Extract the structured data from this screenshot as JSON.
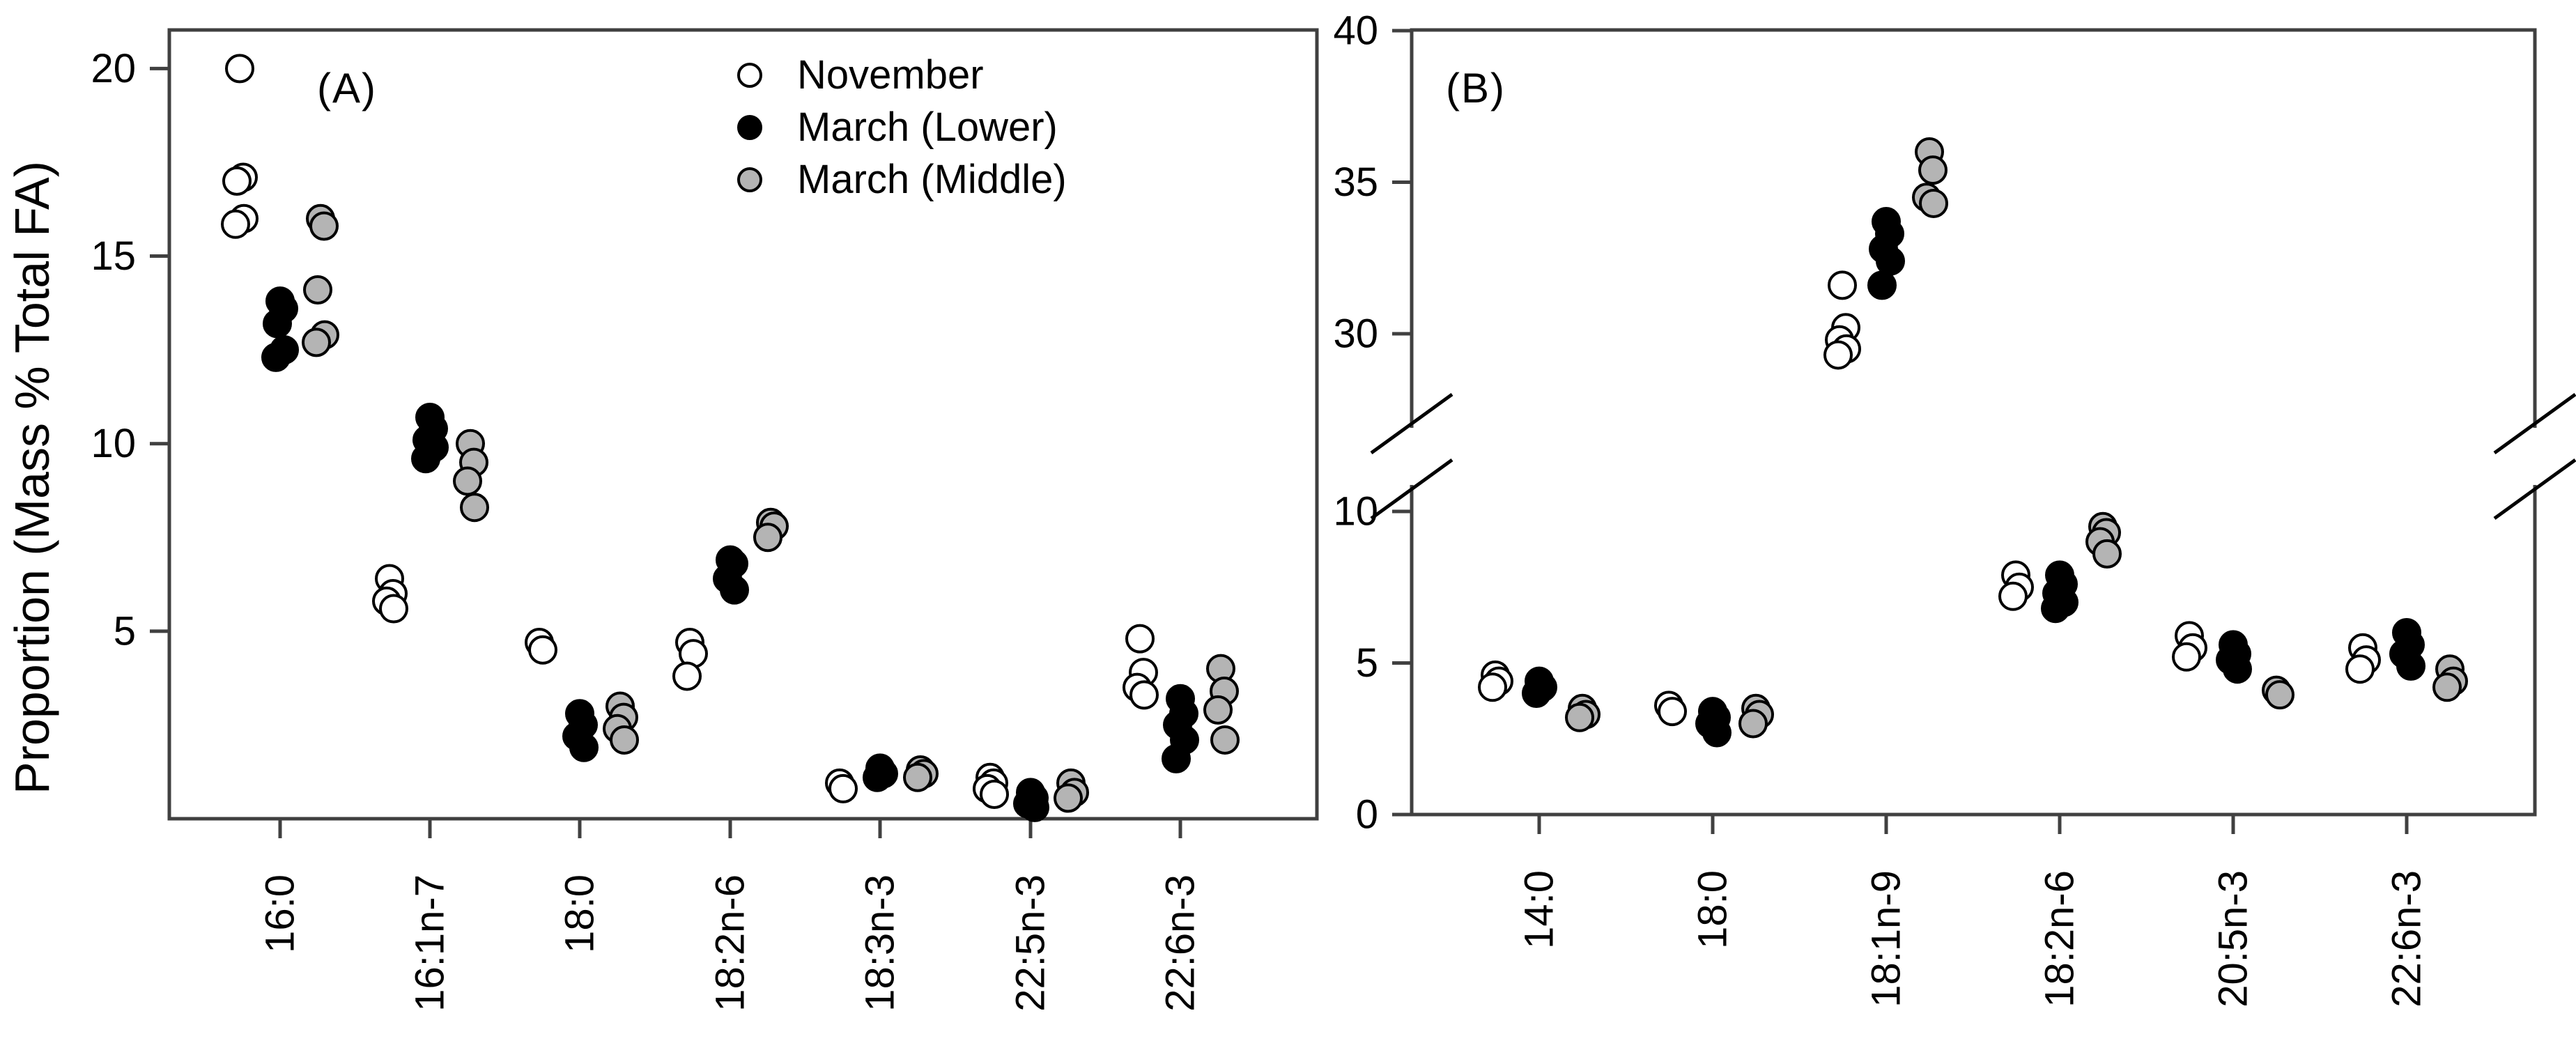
{
  "figure": {
    "background": "#ffffff",
    "axis_color": "#404040",
    "text_color": "#000000"
  },
  "legend": {
    "items": [
      {
        "label": "November",
        "marker": "open-circle",
        "fill": "#ffffff",
        "stroke": "#000000"
      },
      {
        "label": "March (Lower)",
        "marker": "filled-circle",
        "fill": "#000000",
        "stroke": "#000000"
      },
      {
        "label": "March (Middle)",
        "marker": "gray-circle",
        "fill": "#b4b4b4",
        "stroke": "#000000"
      }
    ]
  },
  "chart_data": [
    {
      "type": "scatter",
      "panel_label": "(A)",
      "ylabel": "Proportion (Mass % Total FA)",
      "xlabel": "",
      "grid": false,
      "legend_position": "top-right-inside",
      "categories": [
        "16:0",
        "16:1n-7",
        "18:0",
        "18:2n-6",
        "18:3n-3",
        "22:5n-3",
        "22:6n-3"
      ],
      "y_axis": {
        "ticks": [
          5,
          10,
          15,
          20
        ],
        "ylim": [
          0,
          21
        ],
        "break": false
      },
      "series": [
        {
          "name": "November",
          "marker": "open-circle",
          "values": {
            "16:0": [
              20.0,
              17.1,
              17.0,
              16.0,
              15.85
            ],
            "16:1n-7": [
              6.4,
              6.0,
              5.8,
              5.6
            ],
            "18:0": [
              4.7,
              4.5
            ],
            "18:2n-6": [
              4.7,
              4.4,
              3.8
            ],
            "18:3n-3": [
              0.95,
              0.8
            ],
            "22:5n-3": [
              1.1,
              0.95,
              0.8,
              0.65
            ],
            "22:6n-3": [
              4.8,
              3.9,
              3.5,
              3.3
            ]
          }
        },
        {
          "name": "March (Lower)",
          "marker": "filled-circle",
          "values": {
            "16:0": [
              13.8,
              13.6,
              13.2,
              12.5,
              12.3
            ],
            "16:1n-7": [
              10.7,
              10.4,
              10.1,
              9.9,
              9.6
            ],
            "18:0": [
              2.8,
              2.5,
              2.2,
              1.9
            ],
            "18:2n-6": [
              6.9,
              6.8,
              6.4,
              6.1
            ],
            "18:3n-3": [
              1.35,
              1.2,
              1.1
            ],
            "22:5n-3": [
              0.7,
              0.55,
              0.4,
              0.3
            ],
            "22:6n-3": [
              3.2,
              2.8,
              2.5,
              2.1,
              1.6
            ]
          }
        },
        {
          "name": "March (Middle)",
          "marker": "gray-circle",
          "values": {
            "16:0": [
              16.0,
              15.8,
              14.1,
              12.9,
              12.7
            ],
            "16:1n-7": [
              10.0,
              9.5,
              9.0,
              8.3
            ],
            "18:0": [
              3.0,
              2.7,
              2.4,
              2.1
            ],
            "18:2n-6": [
              7.9,
              7.8,
              7.5
            ],
            "18:3n-3": [
              1.3,
              1.2,
              1.1
            ],
            "22:5n-3": [
              0.95,
              0.7,
              0.55
            ],
            "22:6n-3": [
              4.0,
              3.4,
              2.9,
              2.1
            ]
          }
        }
      ]
    },
    {
      "type": "scatter",
      "panel_label": "(B)",
      "ylabel": "",
      "xlabel": "",
      "grid": false,
      "categories": [
        "14:0",
        "18:0",
        "18:1n-9",
        "18:2n-6",
        "20:5n-3",
        "22:6n-3"
      ],
      "y_axis": {
        "bottom_ticks": [
          0,
          5,
          10
        ],
        "top_ticks": [
          30,
          35,
          40
        ],
        "ylim_bottom": [
          0,
          11.5
        ],
        "ylim_top": [
          27,
          40
        ],
        "break": true
      },
      "series": [
        {
          "name": "November",
          "marker": "open-circle",
          "values": {
            "14:0": [
              4.6,
              4.4,
              4.2
            ],
            "18:0": [
              3.6,
              3.4
            ],
            "18:1n-9": [
              31.6,
              30.2,
              29.8,
              29.5,
              29.3
            ],
            "18:2n-6": [
              7.9,
              7.5,
              7.2
            ],
            "20:5n-3": [
              5.9,
              5.5,
              5.2
            ],
            "22:6n-3": [
              5.5,
              5.1,
              4.8
            ]
          }
        },
        {
          "name": "March (Lower)",
          "marker": "filled-circle",
          "values": {
            "14:0": [
              4.4,
              4.2,
              4.0
            ],
            "18:0": [
              3.4,
              3.2,
              3.0,
              2.7
            ],
            "18:1n-9": [
              33.7,
              33.3,
              32.8,
              32.4,
              31.6
            ],
            "18:2n-6": [
              7.9,
              7.6,
              7.3,
              7.0,
              6.8
            ],
            "20:5n-3": [
              5.6,
              5.3,
              5.1,
              4.8
            ],
            "22:6n-3": [
              6.0,
              5.6,
              5.3,
              4.9
            ]
          }
        },
        {
          "name": "March (Middle)",
          "marker": "gray-circle",
          "values": {
            "14:0": [
              3.5,
              3.3,
              3.2
            ],
            "18:0": [
              3.5,
              3.3,
              3.0
            ],
            "18:1n-9": [
              36.0,
              35.4,
              34.5,
              34.3
            ],
            "18:2n-6": [
              9.5,
              9.3,
              9.0,
              8.6
            ],
            "20:5n-3": [
              4.1,
              3.95
            ],
            "22:6n-3": [
              4.8,
              4.4,
              4.2
            ]
          }
        }
      ]
    }
  ]
}
